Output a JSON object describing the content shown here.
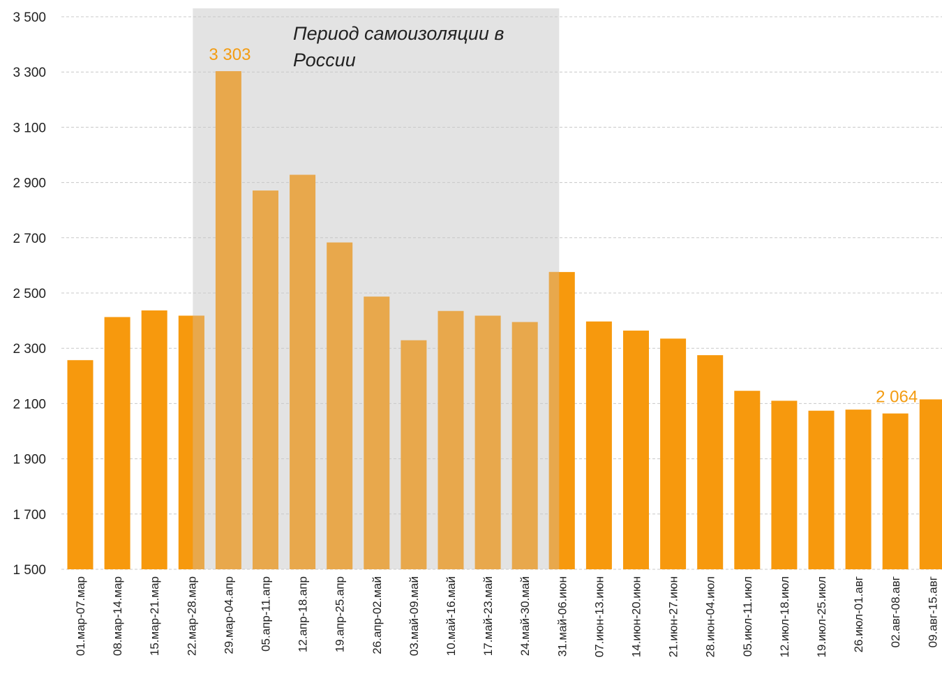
{
  "chart_data": {
    "type": "bar",
    "title": "",
    "xlabel": "",
    "ylabel": "",
    "ylim": [
      1500,
      3500
    ],
    "yticks": [
      1500,
      1700,
      1900,
      2100,
      2300,
      2500,
      2700,
      2900,
      3100,
      3300,
      3500
    ],
    "ytick_labels": [
      "1 500",
      "1 700",
      "1 900",
      "2 100",
      "2 300",
      "2 500",
      "2 700",
      "2 900",
      "3 100",
      "3 300",
      "3 500"
    ],
    "grid": true,
    "legend": "none",
    "categories": [
      "01.мар-07.мар",
      "08.мар-14.мар",
      "15.мар-21.мар",
      "22.мар-28.мар",
      "29.мар-04.апр",
      "05.апр-11.апр",
      "12.апр-18.апр",
      "19.апр-25.апр",
      "26.апр-02.май",
      "03.май-09.май",
      "10.май-16.май",
      "17.май-23.май",
      "24.май-30.май",
      "31.май-06.июн",
      "07.июн-13.июн",
      "14.июн-20.июн",
      "21.июн-27.июн",
      "28.июн-04.июл",
      "05.июл-11.июл",
      "12.июл-18.июл",
      "19.июл-25.июл",
      "26.июл-01.авг",
      "02.авг-08.авг",
      "09.авг-15.авг"
    ],
    "values": [
      2257,
      2413,
      2437,
      2418,
      3303,
      2871,
      2928,
      2683,
      2487,
      2329,
      2435,
      2418,
      2395,
      2576,
      2397,
      2364,
      2335,
      2275,
      2146,
      2110,
      2074,
      2078,
      2064,
      2115
    ],
    "data_labels": [
      {
        "index": 4,
        "text": "3 303"
      },
      {
        "index": 22,
        "text": "2 064"
      }
    ],
    "highlight": {
      "label": "Период самоизоляции в России",
      "label_lines": [
        "Период самоизоляции в",
        "России"
      ],
      "from_index": 3,
      "to_index": 13
    },
    "colors": {
      "bar": "#f7990d",
      "bar_highlighted": "#e8a84c",
      "shade": "#e3e3e3",
      "data_label": "#f39c12"
    }
  }
}
